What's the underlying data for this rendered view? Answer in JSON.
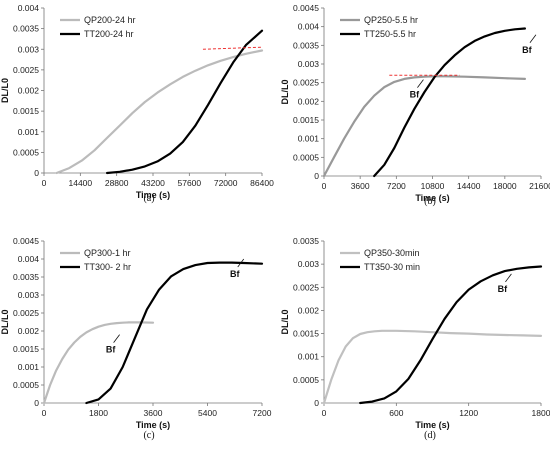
{
  "chart_data": [
    {
      "type": "line",
      "panel_label": "(a)",
      "xlabel": "Time (s)",
      "ylabel": "DL/L0",
      "xlim": [
        0,
        86400
      ],
      "ylim": [
        0,
        0.004
      ],
      "xticks": [
        0,
        14400,
        28800,
        43200,
        57600,
        72000,
        86400
      ],
      "xtick_labels": [
        "0",
        "14400",
        "28800",
        "43200",
        "57600",
        "72000",
        "86400"
      ],
      "yticks": [
        0,
        0.0005,
        0.001,
        0.0015,
        0.002,
        0.0025,
        0.003,
        0.0035,
        0.004
      ],
      "ytick_labels": [
        "0",
        "0.0005",
        "0.001",
        "0.0015",
        "0.002",
        "0.0025",
        "0.003",
        "0.0035",
        "0.004"
      ],
      "legend_position": "top-left",
      "series": [
        {
          "name": "QP200-24 hr",
          "color": "#bbbbbb",
          "x": [
            5000,
            10000,
            15000,
            20000,
            25000,
            30000,
            35000,
            40000,
            45000,
            50000,
            55000,
            60000,
            65000,
            70000,
            75000,
            80000,
            86400
          ],
          "y": [
            0,
            0.00012,
            0.0003,
            0.00055,
            0.00085,
            0.00115,
            0.00145,
            0.00172,
            0.00195,
            0.00215,
            0.00233,
            0.00248,
            0.00261,
            0.00272,
            0.00281,
            0.00289,
            0.00297
          ]
        },
        {
          "name": "TT200-24 hr",
          "color": "#000000",
          "x": [
            25000,
            30000,
            35000,
            40000,
            45000,
            50000,
            55000,
            60000,
            65000,
            70000,
            75000,
            80000,
            86400
          ],
          "y": [
            0,
            3e-05,
            8e-05,
            0.00016,
            0.00028,
            0.00047,
            0.00075,
            0.00115,
            0.00165,
            0.00218,
            0.00268,
            0.0031,
            0.00345
          ]
        }
      ],
      "annotations": [
        {
          "type": "dashed-line",
          "color": "#ee3333",
          "x": [
            63000,
            86400
          ],
          "y": [
            0.003,
            0.00305
          ]
        }
      ]
    },
    {
      "type": "line",
      "panel_label": "(b)",
      "xlabel": "Time (s)",
      "ylabel": "DL/L0",
      "xlim": [
        0,
        21600
      ],
      "ylim": [
        0,
        0.0045
      ],
      "xticks": [
        0,
        3600,
        7200,
        10800,
        14400,
        18000,
        21600
      ],
      "xtick_labels": [
        "0",
        "3600",
        "7200",
        "10800",
        "14400",
        "18000",
        "21600"
      ],
      "yticks": [
        0,
        0.0005,
        0.001,
        0.0015,
        0.002,
        0.0025,
        0.003,
        0.0035,
        0.004,
        0.0045
      ],
      "ytick_labels": [
        "0",
        "0.0005",
        "0.001",
        "0.0015",
        "0.002",
        "0.0025",
        "0.003",
        "0.0035",
        "0.004",
        "0.0045"
      ],
      "legend_position": "top-left",
      "series": [
        {
          "name": "QP250-5.5 hr",
          "color": "#999999",
          "x": [
            0,
            1000,
            2000,
            3000,
            4000,
            5000,
            6000,
            7000,
            8000,
            9000,
            10000,
            11000,
            12000,
            14000,
            16000,
            18000,
            20000
          ],
          "y": [
            0,
            0.0005,
            0.001,
            0.00145,
            0.00185,
            0.00215,
            0.00238,
            0.00252,
            0.0026,
            0.00264,
            0.00266,
            0.00267,
            0.00267,
            0.00266,
            0.00264,
            0.00262,
            0.0026
          ]
        },
        {
          "name": "TT250-5.5 hr",
          "color": "#000000",
          "x": [
            5000,
            6000,
            7000,
            8000,
            9000,
            10000,
            11000,
            12000,
            13000,
            14000,
            15000,
            16000,
            17000,
            18000,
            19000,
            20000
          ],
          "y": [
            0,
            0.0003,
            0.00075,
            0.0013,
            0.0018,
            0.00225,
            0.00265,
            0.00297,
            0.00323,
            0.00345,
            0.00362,
            0.00374,
            0.00383,
            0.00389,
            0.00393,
            0.00395
          ]
        }
      ],
      "annotations": [
        {
          "type": "dashed-line",
          "color": "#ee3333",
          "x": [
            6500,
            13500
          ],
          "y": [
            0.0027,
            0.0027
          ]
        },
        {
          "type": "text",
          "text": "Bf",
          "x": 9000,
          "y": 0.0021
        },
        {
          "type": "text",
          "text": "Bf",
          "x": 20200,
          "y": 0.0033
        }
      ]
    },
    {
      "type": "line",
      "panel_label": "(c)",
      "xlabel": "Time (s)",
      "ylabel": "DL/L0",
      "xlim": [
        0,
        7200
      ],
      "ylim": [
        0,
        0.0045
      ],
      "xticks": [
        0,
        1800,
        3600,
        5400,
        7200
      ],
      "xtick_labels": [
        "0",
        "1800",
        "3600",
        "5400",
        "7200"
      ],
      "yticks": [
        0,
        0.0005,
        0.001,
        0.0015,
        0.002,
        0.0025,
        0.003,
        0.0035,
        0.004,
        0.0045
      ],
      "ytick_labels": [
        "0",
        "0.0005",
        "0.001",
        "0.0015",
        "0.002",
        "0.0025",
        "0.003",
        "0.0035",
        "0.004",
        "0.0045"
      ],
      "legend_position": "top-left",
      "series": [
        {
          "name": "QP300-1 hr",
          "color": "#bbbbbb",
          "x": [
            0,
            200,
            400,
            600,
            800,
            1000,
            1200,
            1400,
            1600,
            1800,
            2000,
            2200,
            2400,
            2600,
            2800,
            3200,
            3600
          ],
          "y": [
            0,
            0.0005,
            0.0009,
            0.00122,
            0.00148,
            0.00168,
            0.00184,
            0.00196,
            0.00205,
            0.00212,
            0.00217,
            0.0022,
            0.00222,
            0.00223,
            0.00224,
            0.00224,
            0.00223
          ]
        },
        {
          "name": "TT300- 2 hr",
          "color": "#000000",
          "x": [
            1400,
            1800,
            2200,
            2600,
            3000,
            3400,
            3800,
            4200,
            4600,
            5000,
            5400,
            5800,
            6200,
            6600,
            7200
          ],
          "y": [
            0,
            0.0001,
            0.0004,
            0.001,
            0.0018,
            0.0026,
            0.00315,
            0.00352,
            0.00372,
            0.00383,
            0.00389,
            0.0039,
            0.0039,
            0.00389,
            0.00387
          ]
        }
      ],
      "annotations": [
        {
          "type": "text",
          "text": "Bf",
          "x": 2200,
          "y": 0.0014
        },
        {
          "type": "text",
          "text": "Bf",
          "x": 6300,
          "y": 0.0035
        }
      ]
    },
    {
      "type": "line",
      "panel_label": "(d)",
      "xlabel": "Time (s)",
      "ylabel": "DL/L0",
      "xlim": [
        0,
        1800
      ],
      "ylim": [
        0,
        0.0035
      ],
      "xticks": [
        0,
        600,
        1200,
        1800
      ],
      "xtick_labels": [
        "0",
        "600",
        "1200",
        "1800"
      ],
      "yticks": [
        0,
        0.0005,
        0.001,
        0.0015,
        0.002,
        0.0025,
        0.003,
        0.0035
      ],
      "ytick_labels": [
        "0",
        "0.0005",
        "0.001",
        "0.0015",
        "0.002",
        "0.0025",
        "0.003",
        "0.0035"
      ],
      "legend_position": "top-left",
      "series": [
        {
          "name": "QP350-30min",
          "color": "#c0c0c0",
          "x": [
            0,
            60,
            120,
            180,
            240,
            300,
            360,
            420,
            480,
            540,
            600,
            750,
            900,
            1050,
            1200,
            1350,
            1500,
            1650,
            1800
          ],
          "y": [
            0,
            0.0005,
            0.00092,
            0.00122,
            0.0014,
            0.00149,
            0.00153,
            0.00155,
            0.00156,
            0.00156,
            0.00156,
            0.00155,
            0.00153,
            0.00151,
            0.0015,
            0.00148,
            0.00147,
            0.00146,
            0.00145
          ]
        },
        {
          "name": "TT350-30 min",
          "color": "#000000",
          "x": [
            300,
            400,
            500,
            600,
            700,
            800,
            900,
            1000,
            1100,
            1200,
            1300,
            1400,
            1500,
            1600,
            1700,
            1800
          ],
          "y": [
            0,
            3e-05,
            0.0001,
            0.00025,
            0.00052,
            0.00092,
            0.00138,
            0.00182,
            0.00218,
            0.00245,
            0.00263,
            0.00276,
            0.00285,
            0.0029,
            0.00293,
            0.00295
          ]
        }
      ],
      "annotations": [
        {
          "type": "text",
          "text": "Bf",
          "x": 1480,
          "y": 0.0024
        }
      ]
    }
  ]
}
